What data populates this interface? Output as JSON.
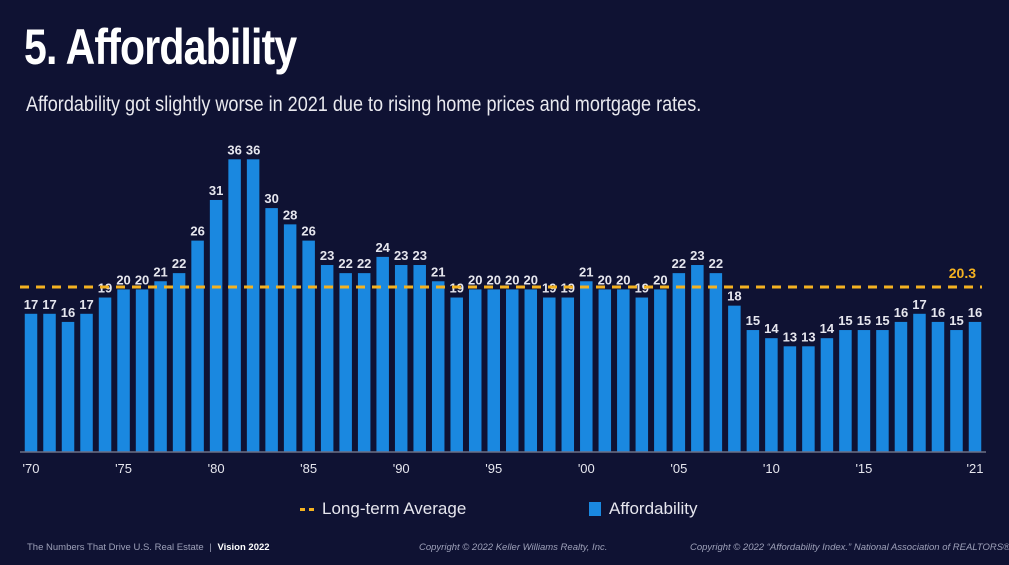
{
  "header": {
    "title": "5. Affordability",
    "subtitle": "Affordability got slightly worse in 2021 due to rising home prices and mortgage rates."
  },
  "legend": {
    "average_label": "Long-term Average",
    "bars_label": "Affordability"
  },
  "footer": {
    "left_text": "The Numbers That Drive U.S. Real Estate",
    "separator": "|",
    "left_bold": "Vision 2022",
    "center": "Copyright © 2022 Keller Williams Realty, Inc.",
    "right": "Copyright © 2022 “Affordability Index.” National Association of REALTORS®."
  },
  "colors": {
    "background": "#0f1233",
    "bar": "#1a88e0",
    "average_line": "#f4b221",
    "label": "#e6e6ee"
  },
  "chart_data": {
    "type": "bar",
    "title": "5. Affordability",
    "xlabel": "",
    "ylabel": "",
    "grid": false,
    "legend_position": "bottom",
    "categories": [
      1970,
      1971,
      1972,
      1973,
      1974,
      1975,
      1976,
      1977,
      1978,
      1979,
      1980,
      1981,
      1982,
      1983,
      1984,
      1985,
      1986,
      1987,
      1988,
      1989,
      1990,
      1991,
      1992,
      1993,
      1994,
      1995,
      1996,
      1997,
      1998,
      1999,
      2000,
      2001,
      2002,
      2003,
      2004,
      2005,
      2006,
      2007,
      2008,
      2009,
      2010,
      2011,
      2012,
      2013,
      2014,
      2015,
      2016,
      2017,
      2018,
      2019,
      2020,
      2021
    ],
    "x_tick_labels": [
      "'70",
      "'75",
      "'80",
      "'85",
      "'90",
      "'95",
      "'00",
      "'05",
      "'10",
      "'15",
      "'21"
    ],
    "x_tick_years": [
      1970,
      1975,
      1980,
      1985,
      1990,
      1995,
      2000,
      2005,
      2010,
      2015,
      2021
    ],
    "series": [
      {
        "name": "Affordability",
        "values": [
          17,
          17,
          16,
          17,
          19,
          20,
          20,
          21,
          22,
          26,
          31,
          36,
          36,
          30,
          28,
          26,
          23,
          22,
          22,
          24,
          23,
          23,
          21,
          19,
          20,
          20,
          20,
          20,
          19,
          19,
          21,
          20,
          20,
          19,
          20,
          22,
          23,
          22,
          18,
          15,
          14,
          13,
          13,
          14,
          15,
          15,
          15,
          16,
          17,
          16,
          15,
          16
        ]
      }
    ],
    "reference_line": {
      "name": "Long-term Average",
      "value": 20.3,
      "label": "20.3"
    },
    "ylim": [
      0,
      37
    ]
  }
}
